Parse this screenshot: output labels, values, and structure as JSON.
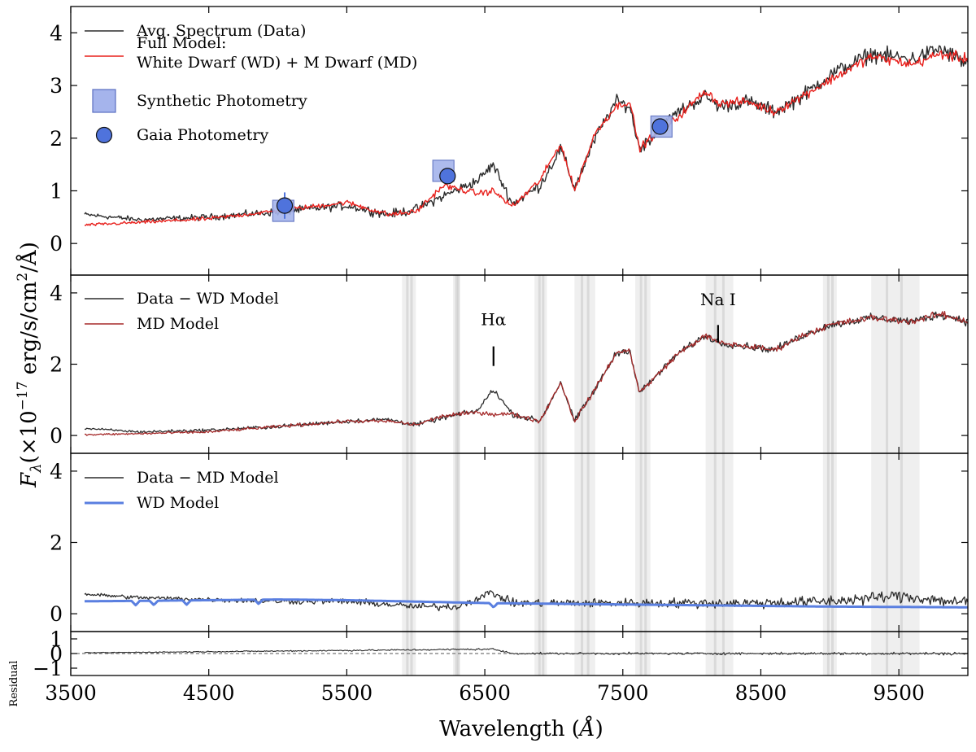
{
  "chart_data": {
    "type": "line",
    "x_range": [
      3500,
      10000
    ],
    "x_ticks": [
      3500,
      4500,
      5500,
      6500,
      7500,
      8500,
      9500
    ],
    "x_ticklabels": [
      "3500",
      "4500",
      "5500",
      "6500",
      "7500",
      "8500",
      "9500"
    ],
    "xlabel_text": "Wavelength (",
    "xlabel_unit": "Å",
    "xlabel_close": ")",
    "ylabel_base": "F",
    "ylabel_sub": "λ",
    "ylabel_mid": "(×10",
    "ylabel_exp": "−17",
    "ylabel_units": " erg/s/cm",
    "ylabel_sq": "2",
    "ylabel_tail": "/Å)",
    "residual_label": "Residual",
    "colors": {
      "data": "#2b2b2b",
      "full_model": "#e8201c",
      "md_model": "#a52a2a",
      "wd_model": "#5a7fe0",
      "synthetic_fill": "#a5b4ec",
      "synthetic_edge": "#5b6fc0",
      "gaia_fill": "#4f73dc",
      "telluric": "#9a9a9a"
    },
    "panels": [
      {
        "id": "top",
        "ylim": [
          -0.6,
          4.5
        ],
        "yticks": [
          0,
          1,
          2,
          3,
          4
        ],
        "yticklabels": [
          "0",
          "1",
          "2",
          "3",
          "4"
        ],
        "legend": [
          {
            "label": "Avg. Spectrum (Data)",
            "kind": "line",
            "color": "#2b2b2b"
          },
          {
            "label": "Full Model:",
            "label2": "White Dwarf (WD) + M Dwarf (MD)",
            "kind": "line",
            "color": "#e8201c"
          },
          {
            "label": "Synthetic Photometry",
            "kind": "square"
          },
          {
            "label": "Gaia Photometry",
            "kind": "circle"
          }
        ],
        "synthetic_photometry": [
          {
            "x": 5040,
            "y": 0.62
          },
          {
            "x": 6200,
            "y": 1.38
          },
          {
            "x": 7780,
            "y": 2.22
          }
        ],
        "gaia_photometry": [
          {
            "x": 5050,
            "y": 0.72,
            "err": 0.25
          },
          {
            "x": 6230,
            "y": 1.28,
            "err": 0.0
          },
          {
            "x": 7770,
            "y": 2.22,
            "err": 0.15
          }
        ]
      },
      {
        "id": "middle",
        "ylim": [
          -0.5,
          4.5
        ],
        "yticks": [
          0,
          2,
          4
        ],
        "yticklabels": [
          "0",
          "2",
          "4"
        ],
        "legend": [
          {
            "label": "Data − WD Model",
            "kind": "line",
            "color": "#2b2b2b"
          },
          {
            "label": "MD Model",
            "kind": "line",
            "color": "#a52a2a"
          }
        ],
        "annotations": [
          {
            "label": "Hα",
            "x": 6563,
            "y_text": 3.1,
            "y_tick_top": 2.5,
            "y_tick_bot": 1.95
          },
          {
            "label": "Na I",
            "x": 8190,
            "y_text": 3.65,
            "y_tick_top": 3.1,
            "y_tick_bot": 2.6
          }
        ]
      },
      {
        "id": "lower",
        "ylim": [
          -0.5,
          4.5
        ],
        "yticks": [
          0,
          2,
          4
        ],
        "yticklabels": [
          "0",
          "2",
          "4"
        ],
        "legend": [
          {
            "label": "Data − MD Model",
            "kind": "line",
            "color": "#2b2b2b"
          },
          {
            "label": "WD Model",
            "kind": "thick",
            "color": "#5a7fe0"
          }
        ]
      },
      {
        "id": "residual",
        "ylim": [
          -1.5,
          1.5
        ],
        "yticks": [
          -1,
          0,
          1
        ],
        "yticklabels": [
          "−1",
          "0",
          "1"
        ]
      }
    ],
    "continuum_nodes": {
      "full_model": [
        [
          3600,
          0.35
        ],
        [
          4000,
          0.4
        ],
        [
          4500,
          0.47
        ],
        [
          5000,
          0.62
        ],
        [
          5500,
          0.78
        ],
        [
          5800,
          0.55
        ],
        [
          6000,
          0.6
        ],
        [
          6200,
          1.1
        ],
        [
          6450,
          0.95
        ],
        [
          6560,
          1.0
        ],
        [
          6700,
          0.7
        ],
        [
          6900,
          1.2
        ],
        [
          7050,
          1.9
        ],
        [
          7150,
          1.0
        ],
        [
          7300,
          2.1
        ],
        [
          7450,
          2.6
        ],
        [
          7550,
          2.7
        ],
        [
          7620,
          1.8
        ],
        [
          7700,
          2.0
        ],
        [
          7900,
          2.4
        ],
        [
          8100,
          2.9
        ],
        [
          8200,
          2.65
        ],
        [
          8400,
          2.7
        ],
        [
          8600,
          2.5
        ],
        [
          8800,
          2.8
        ],
        [
          9000,
          3.1
        ],
        [
          9300,
          3.55
        ],
        [
          9600,
          3.4
        ],
        [
          9800,
          3.6
        ],
        [
          10000,
          3.5
        ]
      ],
      "data": [
        [
          3600,
          0.55
        ],
        [
          4000,
          0.45
        ],
        [
          4500,
          0.5
        ],
        [
          5000,
          0.6
        ],
        [
          5500,
          0.72
        ],
        [
          5800,
          0.55
        ],
        [
          6000,
          0.65
        ],
        [
          6200,
          0.9
        ],
        [
          6450,
          1.2
        ],
        [
          6560,
          1.5
        ],
        [
          6700,
          0.75
        ],
        [
          6900,
          1.1
        ],
        [
          7050,
          1.8
        ],
        [
          7150,
          1.05
        ],
        [
          7300,
          2.0
        ],
        [
          7450,
          2.7
        ],
        [
          7550,
          2.6
        ],
        [
          7620,
          1.8
        ],
        [
          7700,
          2.0
        ],
        [
          7900,
          2.5
        ],
        [
          8100,
          2.8
        ],
        [
          8200,
          2.6
        ],
        [
          8400,
          2.7
        ],
        [
          8600,
          2.5
        ],
        [
          8800,
          2.8
        ],
        [
          9000,
          3.2
        ],
        [
          9300,
          3.6
        ],
        [
          9600,
          3.5
        ],
        [
          9800,
          3.7
        ],
        [
          10000,
          3.4
        ]
      ],
      "data_minus_wd": [
        [
          3600,
          0.2
        ],
        [
          4000,
          0.1
        ],
        [
          4500,
          0.15
        ],
        [
          5000,
          0.25
        ],
        [
          5500,
          0.4
        ],
        [
          5800,
          0.45
        ],
        [
          6000,
          0.3
        ],
        [
          6200,
          0.5
        ],
        [
          6450,
          0.7
        ],
        [
          6560,
          1.3
        ],
        [
          6700,
          0.6
        ],
        [
          6900,
          0.4
        ],
        [
          7050,
          1.5
        ],
        [
          7150,
          0.4
        ],
        [
          7300,
          1.3
        ],
        [
          7450,
          2.3
        ],
        [
          7550,
          2.4
        ],
        [
          7620,
          1.2
        ],
        [
          7700,
          1.5
        ],
        [
          7900,
          2.3
        ],
        [
          8100,
          2.8
        ],
        [
          8200,
          2.6
        ],
        [
          8400,
          2.5
        ],
        [
          8600,
          2.4
        ],
        [
          8800,
          2.8
        ],
        [
          9000,
          3.1
        ],
        [
          9300,
          3.3
        ],
        [
          9600,
          3.2
        ],
        [
          9800,
          3.4
        ],
        [
          10000,
          3.2
        ]
      ],
      "md_model": [
        [
          3600,
          0.02
        ],
        [
          4000,
          0.05
        ],
        [
          4500,
          0.1
        ],
        [
          5000,
          0.25
        ],
        [
          5500,
          0.4
        ],
        [
          5800,
          0.4
        ],
        [
          6000,
          0.3
        ],
        [
          6200,
          0.55
        ],
        [
          6450,
          0.65
        ],
        [
          6560,
          0.6
        ],
        [
          6700,
          0.6
        ],
        [
          6900,
          0.4
        ],
        [
          7050,
          1.5
        ],
        [
          7150,
          0.4
        ],
        [
          7300,
          1.3
        ],
        [
          7450,
          2.3
        ],
        [
          7550,
          2.4
        ],
        [
          7620,
          1.2
        ],
        [
          7700,
          1.5
        ],
        [
          7900,
          2.3
        ],
        [
          8100,
          2.8
        ],
        [
          8200,
          2.6
        ],
        [
          8400,
          2.5
        ],
        [
          8600,
          2.4
        ],
        [
          8800,
          2.8
        ],
        [
          9000,
          3.1
        ],
        [
          9300,
          3.3
        ],
        [
          9600,
          3.2
        ],
        [
          9800,
          3.4
        ],
        [
          10000,
          3.2
        ]
      ],
      "data_minus_md": [
        [
          3600,
          0.55
        ],
        [
          4000,
          0.45
        ],
        [
          4500,
          0.4
        ],
        [
          5000,
          0.35
        ],
        [
          5500,
          0.35
        ],
        [
          6000,
          0.2
        ],
        [
          6300,
          0.2
        ],
        [
          6550,
          0.6
        ],
        [
          6700,
          0.3
        ],
        [
          7000,
          0.3
        ],
        [
          7500,
          0.3
        ],
        [
          8000,
          0.3
        ],
        [
          8500,
          0.3
        ],
        [
          9000,
          0.35
        ],
        [
          9500,
          0.5
        ],
        [
          10000,
          0.3
        ]
      ],
      "wd_model": [
        [
          3600,
          0.35
        ],
        [
          4000,
          0.36
        ],
        [
          4500,
          0.38
        ],
        [
          5000,
          0.4
        ],
        [
          5500,
          0.38
        ],
        [
          6000,
          0.34
        ],
        [
          6500,
          0.3
        ],
        [
          7000,
          0.28
        ],
        [
          7500,
          0.26
        ],
        [
          8000,
          0.24
        ],
        [
          8500,
          0.22
        ],
        [
          9000,
          0.2
        ],
        [
          9500,
          0.19
        ],
        [
          10000,
          0.18
        ]
      ]
    },
    "noise_levels": {
      "full_model": 0.05,
      "data": 0.08,
      "data_minus_wd": 0.06,
      "md_model": 0.05,
      "data_minus_md": 0.09,
      "residual": 0.05
    },
    "telluric_bands": [
      [
        5900,
        6000
      ],
      [
        6270,
        6320
      ],
      [
        6860,
        6950
      ],
      [
        7150,
        7300
      ],
      [
        7590,
        7700
      ],
      [
        8100,
        8300
      ],
      [
        8950,
        9050
      ],
      [
        9300,
        9650
      ]
    ]
  }
}
